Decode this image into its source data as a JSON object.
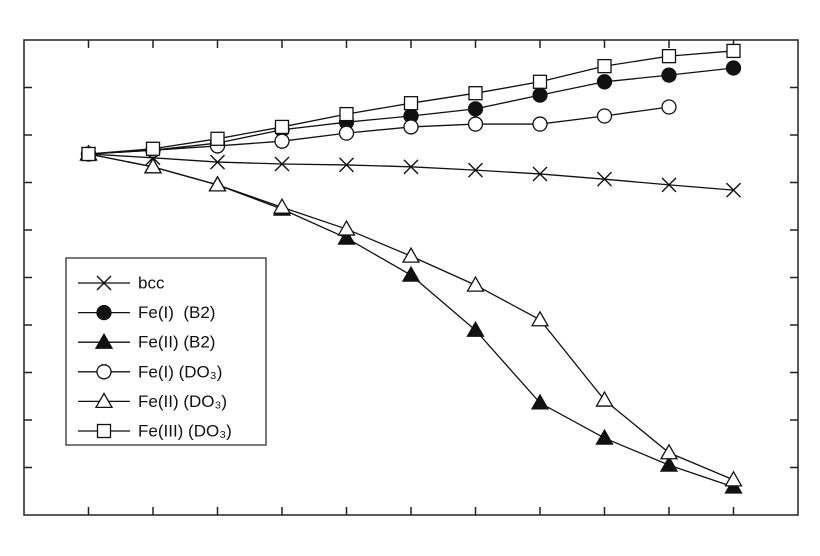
{
  "chart_data": {
    "type": "line",
    "x": [
      1,
      2,
      3,
      4,
      5,
      6,
      7,
      8,
      9,
      10,
      11
    ],
    "xlim": [
      0,
      12
    ],
    "xticks": [
      1,
      2,
      3,
      4,
      5,
      6,
      7,
      8,
      9,
      10,
      11
    ],
    "ylim": [
      0,
      10
    ],
    "yticks": [
      1,
      2,
      3,
      4,
      5,
      6,
      7,
      8,
      9
    ],
    "legend": "lower-left",
    "series": [
      {
        "name": "bcc",
        "color": "#111111",
        "marker": "x",
        "values": [
          7.6,
          7.52,
          7.43,
          7.39,
          7.37,
          7.33,
          7.26,
          7.18,
          7.07,
          6.95,
          6.84
        ]
      },
      {
        "name": "Fe(I)  (B2)",
        "color": "#111111",
        "marker": "filled-circle",
        "values": [
          7.6,
          7.68,
          7.83,
          8.11,
          8.27,
          8.4,
          8.55,
          8.84,
          9.12,
          9.26,
          9.41
        ]
      },
      {
        "name": "Fe(II) (B2)",
        "color": "#111111",
        "marker": "filled-triangle",
        "values": [
          7.6,
          7.33,
          6.95,
          6.44,
          5.83,
          5.05,
          3.89,
          2.36,
          1.62,
          1.05,
          0.59
        ]
      },
      {
        "name": "Fe(I) (DO₃)",
        "color": "#111111",
        "marker": "open-circle",
        "values": [
          7.6,
          7.68,
          7.77,
          7.87,
          8.04,
          8.17,
          8.23,
          8.23,
          8.4,
          8.59,
          null
        ]
      },
      {
        "name": "Fe(II) (DO₃)",
        "color": "#111111",
        "marker": "open-triangle",
        "values": [
          7.6,
          7.33,
          6.95,
          6.48,
          6.02,
          5.45,
          4.84,
          4.11,
          2.42,
          1.31,
          0.74
        ]
      },
      {
        "name": "Fe(III) (DO₃)",
        "color": "#111111",
        "marker": "open-square",
        "values": [
          7.6,
          7.71,
          7.92,
          8.17,
          8.44,
          8.67,
          8.88,
          9.12,
          9.45,
          9.66,
          9.77
        ]
      }
    ]
  }
}
